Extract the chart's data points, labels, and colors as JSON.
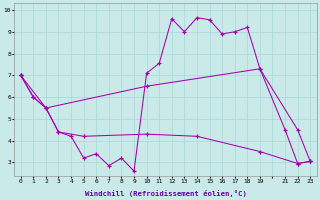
{
  "xlabel": "Windchill (Refroidissement éolien,°C)",
  "background_color": "#caeaea",
  "grid_color": "#aad8d8",
  "line_color": "#aa00aa",
  "xlim": [
    -0.5,
    23.5
  ],
  "ylim": [
    2.4,
    10.3
  ],
  "y_ticks": [
    3,
    4,
    5,
    6,
    7,
    8,
    9,
    10
  ],
  "series1_x": [
    0,
    1,
    2,
    3,
    4,
    5,
    6,
    7,
    8,
    9,
    10,
    11,
    12,
    13,
    14,
    15,
    16,
    17,
    18,
    19,
    21,
    22,
    23
  ],
  "series1_y": [
    7.0,
    6.0,
    5.5,
    4.4,
    4.2,
    3.2,
    3.4,
    2.85,
    3.2,
    2.6,
    7.1,
    7.55,
    9.6,
    9.0,
    9.65,
    9.55,
    8.9,
    9.0,
    9.2,
    7.3,
    4.5,
    2.95,
    3.05
  ],
  "series2_x": [
    0,
    1,
    2,
    10,
    19,
    22,
    23
  ],
  "series2_y": [
    7.0,
    6.0,
    5.5,
    6.5,
    7.3,
    4.5,
    3.05
  ],
  "series3_x": [
    0,
    2,
    3,
    5,
    10,
    14,
    19,
    22,
    23
  ],
  "series3_y": [
    7.0,
    5.5,
    4.4,
    4.2,
    4.3,
    4.2,
    3.5,
    2.95,
    3.05
  ]
}
